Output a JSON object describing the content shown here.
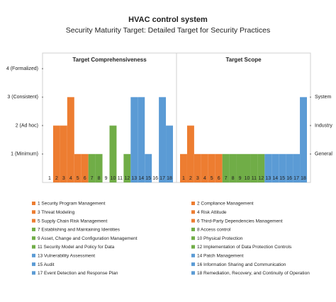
{
  "header": {
    "title": "HVAC control system",
    "subtitle": "Security Maturity Target: Detailed Target for Security Practices"
  },
  "chart_data": [
    {
      "type": "bar",
      "title": "Target Comprehensiveness",
      "axis_side": "left",
      "categories": [
        "1",
        "2",
        "3",
        "4",
        "5",
        "6",
        "7",
        "8",
        "9",
        "10",
        "11",
        "12",
        "13",
        "14",
        "15",
        "16",
        "17",
        "18"
      ],
      "values": [
        0,
        2,
        2,
        3,
        1,
        1,
        1,
        1,
        0,
        2,
        0,
        1,
        3,
        3,
        1,
        0,
        3,
        2
      ],
      "colors": [
        "#ed7d31",
        "#ed7d31",
        "#ed7d31",
        "#ed7d31",
        "#ed7d31",
        "#ed7d31",
        "#70ad47",
        "#70ad47",
        "#70ad47",
        "#70ad47",
        "#70ad47",
        "#70ad47",
        "#5b9bd5",
        "#5b9bd5",
        "#5b9bd5",
        "#5b9bd5",
        "#5b9bd5",
        "#5b9bd5"
      ],
      "ylim": [
        0,
        4.55
      ],
      "yticks": [
        {
          "value": 1,
          "label": "1 (Minimum)"
        },
        {
          "value": 2,
          "label": "2 (Ad hoc)"
        },
        {
          "value": 3,
          "label": "3 (Consistent)"
        },
        {
          "value": 4,
          "label": "4 (Formalized)"
        }
      ]
    },
    {
      "type": "bar",
      "title": "Target Scope",
      "axis_side": "right",
      "categories": [
        "1",
        "2",
        "3",
        "4",
        "5",
        "6",
        "7",
        "8",
        "9",
        "10",
        "11",
        "12",
        "13",
        "14",
        "15",
        "16",
        "17",
        "18"
      ],
      "values": [
        1,
        2,
        1,
        1,
        1,
        1,
        1,
        1,
        1,
        1,
        1,
        1,
        1,
        1,
        1,
        1,
        1,
        3
      ],
      "colors": [
        "#ed7d31",
        "#ed7d31",
        "#ed7d31",
        "#ed7d31",
        "#ed7d31",
        "#ed7d31",
        "#70ad47",
        "#70ad47",
        "#70ad47",
        "#70ad47",
        "#70ad47",
        "#70ad47",
        "#5b9bd5",
        "#5b9bd5",
        "#5b9bd5",
        "#5b9bd5",
        "#5b9bd5",
        "#5b9bd5"
      ],
      "ylim": [
        0,
        4.55
      ],
      "yticks": [
        {
          "value": 1,
          "label": "General"
        },
        {
          "value": 2,
          "label": "Industry"
        },
        {
          "value": 3,
          "label": "System"
        }
      ]
    }
  ],
  "legend": [
    {
      "label": "1 Security Program Management",
      "color": "#ed7d31"
    },
    {
      "label": "2 Compliance Management",
      "color": "#ed7d31"
    },
    {
      "label": "3 Threat Modeling",
      "color": "#ed7d31"
    },
    {
      "label": "4 Risk Attitude",
      "color": "#ed7d31"
    },
    {
      "label": "5 Supply Chain Risk Management",
      "color": "#ed7d31"
    },
    {
      "label": "6 Third-Party Dependencies Management",
      "color": "#ed7d31"
    },
    {
      "label": "7 Establishing and Maintaining Identities",
      "color": "#70ad47"
    },
    {
      "label": "8 Access control",
      "color": "#70ad47"
    },
    {
      "label": "9 Asset, Change and Configuration Management",
      "color": "#70ad47"
    },
    {
      "label": "10 Physical Protection",
      "color": "#70ad47"
    },
    {
      "label": "11 Security Model and Policy for Data",
      "color": "#70ad47"
    },
    {
      "label": "12 Implementation of Data Protection Controls",
      "color": "#70ad47"
    },
    {
      "label": "13 Vulnerability Assessment",
      "color": "#5b9bd5"
    },
    {
      "label": "14 Patch Management",
      "color": "#5b9bd5"
    },
    {
      "label": "15 Audit",
      "color": "#5b9bd5"
    },
    {
      "label": "16 Information Sharing and Communication",
      "color": "#5b9bd5"
    },
    {
      "label": "17 Event Detection and Response Plan",
      "color": "#5b9bd5"
    },
    {
      "label": "18 Remediation, Recovery, and Continuity of Operation",
      "color": "#5b9bd5"
    }
  ]
}
